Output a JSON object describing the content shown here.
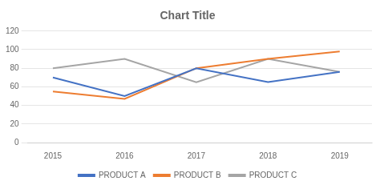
{
  "chart_data": {
    "type": "line",
    "title": "Chart Title",
    "x": [
      2015,
      2016,
      2017,
      2018,
      2019
    ],
    "series": [
      {
        "name": "PRODUCT A",
        "color": "#4472C4",
        "values": [
          70,
          50,
          80,
          65,
          76
        ]
      },
      {
        "name": "PRODUCT B",
        "color": "#ED7D31",
        "values": [
          55,
          47,
          80,
          90,
          98
        ]
      },
      {
        "name": "PRODUCT C",
        "color": "#A5A5A5",
        "values": [
          80,
          90,
          65,
          90,
          76
        ]
      }
    ],
    "xlim": [
      2014.65,
      2019.45
    ],
    "xticks": [
      2015,
      2016,
      2017,
      2018,
      2019
    ],
    "ylim": [
      0,
      120
    ],
    "yticks": [
      0,
      20,
      40,
      60,
      80,
      100,
      120
    ],
    "grid": true,
    "legend": "bottom"
  }
}
